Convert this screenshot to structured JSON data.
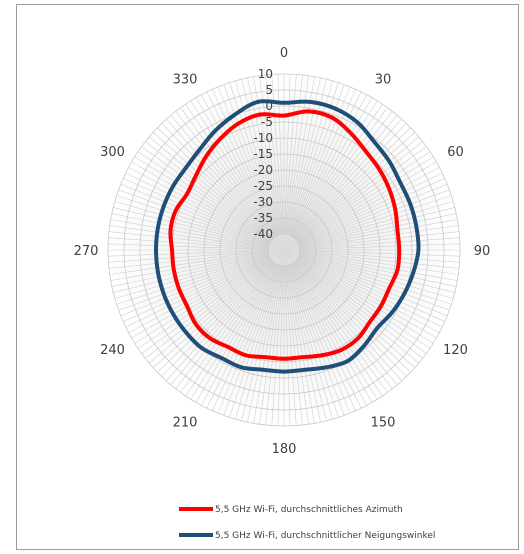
{
  "chart_data": {
    "type": "radar",
    "angle_labels": [
      "0",
      "30",
      "60",
      "90",
      "120",
      "150",
      "180",
      "210",
      "240",
      "270",
      "300",
      "330"
    ],
    "radial_ticks": [
      10,
      5,
      0,
      -5,
      -10,
      -15,
      -20,
      -25,
      -30,
      -35,
      -40
    ],
    "rlim": [
      -45,
      10
    ],
    "grid": true,
    "legend_position": "bottom",
    "series": [
      {
        "name": "5,5 GHz Wi-Fi, durchschnittliches Azimuth",
        "color": "#ff0000",
        "angles": [
          0,
          10,
          20,
          30,
          40,
          50,
          60,
          70,
          80,
          90,
          100,
          110,
          120,
          130,
          140,
          150,
          160,
          170,
          180,
          190,
          200,
          210,
          220,
          230,
          240,
          250,
          260,
          270,
          280,
          290,
          300,
          310,
          320,
          330,
          340,
          350
        ],
        "values": [
          -3,
          -1,
          -1,
          -3,
          -5,
          -6,
          -7,
          -8,
          -9,
          -9,
          -9,
          -10,
          -10,
          -10,
          -9,
          -9,
          -10,
          -11,
          -11,
          -11,
          -10,
          -10,
          -9,
          -9,
          -10,
          -10,
          -10,
          -10,
          -9,
          -9,
          -10,
          -9,
          -7,
          -5,
          -3,
          -2
        ]
      },
      {
        "name": "5,5 GHz Wi-Fi, durchschnittlicher Neigungswinkel",
        "color": "#1f4e79",
        "angles": [
          0,
          10,
          20,
          30,
          40,
          50,
          60,
          70,
          80,
          90,
          100,
          110,
          120,
          130,
          140,
          150,
          160,
          170,
          180,
          190,
          200,
          210,
          220,
          230,
          240,
          250,
          260,
          270,
          280,
          290,
          300,
          310,
          320,
          330,
          340,
          350
        ],
        "values": [
          1,
          2,
          2,
          1,
          -1,
          -2,
          -3,
          -3,
          -3,
          -3,
          -4,
          -5,
          -6,
          -7,
          -6,
          -5,
          -6,
          -7,
          -7,
          -7,
          -6,
          -6,
          -5,
          -5,
          -5,
          -5,
          -5,
          -5,
          -5,
          -5,
          -5,
          -5,
          -4,
          -2,
          0,
          2
        ]
      }
    ]
  }
}
